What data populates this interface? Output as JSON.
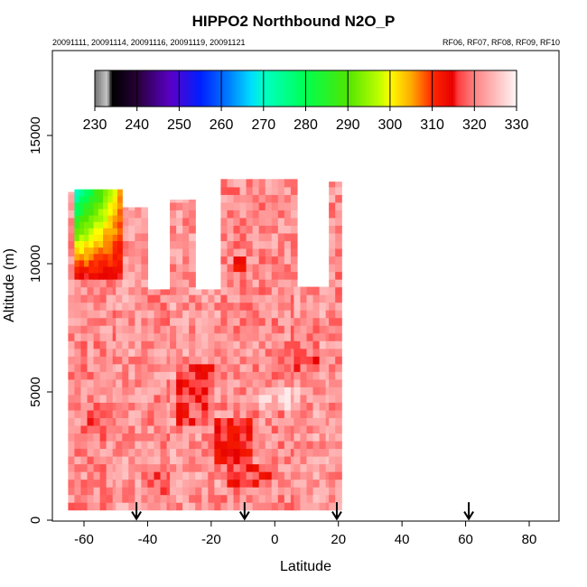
{
  "header": {
    "title": "HIPPO2 Northbound N2O_P",
    "dates": "20091111, 20091114, 20091116, 20091119, 20091121",
    "flights": "RF06, RF07, RF08, RF09, RF10"
  },
  "chart_data": {
    "type": "heatmap",
    "title": "HIPPO2 Northbound N2O_P",
    "xlabel": "Latitude",
    "ylabel": "Altitude (m)",
    "xlim": [
      -72,
      90
    ],
    "ylim": [
      0,
      18000
    ],
    "x_ticks": [
      -60,
      -40,
      -20,
      0,
      20,
      40,
      60,
      80
    ],
    "y_ticks": [
      0,
      5000,
      10000,
      15000
    ],
    "colorbar": {
      "ticks": [
        230,
        240,
        250,
        260,
        270,
        280,
        290,
        300,
        310,
        320,
        330
      ],
      "range": [
        230,
        330
      ]
    },
    "profile_markers_latitude": [
      -43.5,
      -9.5,
      19.5,
      61
    ],
    "coverage_columns": [
      {
        "lat_start": -65,
        "lat_end": -50,
        "alt_top": 12800,
        "value": 321
      },
      {
        "lat_start": -50,
        "lat_end": -40,
        "alt_top": 12200,
        "value": 322
      },
      {
        "lat_start": -40,
        "lat_end": -33,
        "alt_top": 9000,
        "value": 321
      },
      {
        "lat_start": -33,
        "lat_end": -25,
        "alt_top": 12500,
        "value": 322
      },
      {
        "lat_start": -25,
        "lat_end": -17,
        "alt_top": 9000,
        "value": 322
      },
      {
        "lat_start": -17,
        "lat_end": 6,
        "alt_top": 13300,
        "value": 321
      },
      {
        "lat_start": 6,
        "lat_end": 17,
        "alt_top": 9100,
        "value": 322
      },
      {
        "lat_start": 17,
        "lat_end": 19.5,
        "alt_top": 13200,
        "value": 321
      }
    ],
    "patches": [
      {
        "lat_start": -30,
        "lat_end": -18,
        "alt_bottom": 3800,
        "alt_top": 6200,
        "value": 317
      },
      {
        "lat_start": -18,
        "lat_end": -6,
        "alt_bottom": 2300,
        "alt_top": 4100,
        "value": 314
      },
      {
        "lat_start": -15,
        "lat_end": 0,
        "alt_bottom": 1200,
        "alt_top": 2200,
        "value": 316
      },
      {
        "lat_start": -12,
        "lat_end": -9,
        "alt_bottom": 9600,
        "alt_top": 10300,
        "value": 312
      },
      {
        "lat_start": -5,
        "lat_end": 8,
        "alt_bottom": 4200,
        "alt_top": 5200,
        "value": 326
      },
      {
        "lat_start": 5,
        "lat_end": 14,
        "alt_bottom": 5500,
        "alt_top": 7500,
        "value": 319
      },
      {
        "lat_start": -60,
        "lat_end": -50,
        "alt_bottom": 3000,
        "alt_top": 4500,
        "value": 319
      },
      {
        "lat_start": -42,
        "lat_end": -32,
        "alt_bottom": 600,
        "alt_top": 2200,
        "value": 319
      }
    ],
    "gradient_region": {
      "lat_start": -63,
      "lat_end": -48,
      "alt_bottom": 9400,
      "alt_top": 12900,
      "value_low_alt": 314,
      "value_high_alt": 268
    }
  }
}
